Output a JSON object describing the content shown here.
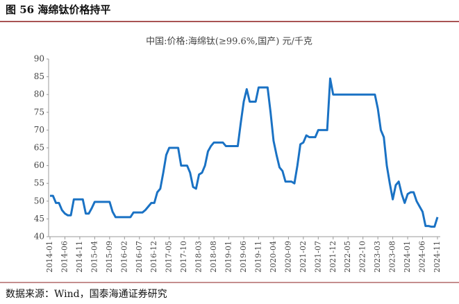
{
  "chart_data": {
    "type": "line",
    "figure_title": "图 56 海绵钛价格持平",
    "title": "中国:价格:海绵钛(≥99.6%,国产) 元/千克",
    "source": "数据来源：Wind，国泰海通证券研究",
    "categories": [
      "2014-01",
      null,
      null,
      null,
      null,
      "2014-06",
      null,
      null,
      null,
      null,
      "2014-11",
      null,
      null,
      null,
      null,
      "2015-04",
      null,
      null,
      null,
      null,
      "2015-09",
      null,
      null,
      null,
      null,
      "2016-02",
      null,
      null,
      null,
      null,
      "2016-07",
      null,
      null,
      null,
      null,
      "2016-12",
      null,
      null,
      null,
      null,
      "2017-05",
      null,
      null,
      null,
      null,
      "2017-10",
      null,
      null,
      null,
      null,
      "2018-03",
      null,
      null,
      null,
      null,
      "2018-08",
      null,
      null,
      null,
      null,
      "2019-01",
      null,
      null,
      null,
      null,
      "2019-06",
      null,
      null,
      null,
      null,
      "2019-11",
      null,
      null,
      null,
      null,
      "2020-04",
      null,
      null,
      null,
      null,
      "2020-09",
      null,
      null,
      null,
      null,
      "2021-02",
      null,
      null,
      null,
      null,
      "2021-07",
      null,
      null,
      null,
      null,
      "2021-12",
      null,
      null,
      null,
      null,
      "2022-05",
      null,
      null,
      null,
      null,
      "2022-10",
      null,
      null,
      null,
      null,
      "2023-03",
      null,
      null,
      null,
      null,
      "2023-08",
      null,
      null,
      null,
      null,
      "2024-01",
      null,
      null,
      null,
      null,
      "2024-06",
      null,
      null,
      null,
      null,
      "2024-11"
    ],
    "series": [
      {
        "color": "#1a72c4",
        "values": [
          51.5,
          51.5,
          49.5,
          49.5,
          47.5,
          46.5,
          46,
          46,
          50.5,
          50.5,
          50.5,
          50.5,
          46.5,
          46.5,
          48,
          49.8,
          49.8,
          49.8,
          49.8,
          49.8,
          49.8,
          47,
          45.5,
          45.5,
          45.5,
          45.5,
          45.5,
          45.5,
          46.8,
          46.8,
          46.8,
          46.8,
          47.5,
          48.5,
          49.5,
          49.5,
          52.5,
          53.5,
          58,
          63,
          65,
          65,
          65,
          65,
          60,
          60,
          60,
          58,
          54,
          53.5,
          57.5,
          58,
          60,
          64,
          65.5,
          66.5,
          66.5,
          66.5,
          66.5,
          65.5,
          65.5,
          65.5,
          65.5,
          65.5,
          72,
          78,
          81.5,
          78,
          78,
          78,
          82,
          82,
          82,
          82,
          75,
          67,
          63,
          59.5,
          58.5,
          55.5,
          55.5,
          55.5,
          55,
          60,
          66,
          66.5,
          68.5,
          68,
          68,
          68,
          70,
          70,
          70,
          70,
          84.5,
          80,
          80,
          80,
          80,
          80,
          80,
          80,
          80,
          80,
          80,
          80,
          80,
          80,
          80,
          80,
          76,
          70,
          68,
          60,
          55,
          50.5,
          54.5,
          55.5,
          52,
          49.5,
          52,
          52.5,
          52.5,
          50,
          48.5,
          47,
          43,
          43,
          42.8,
          42.8,
          45.5
        ]
      }
    ],
    "ylim": [
      40,
      90
    ],
    "yticks": [
      40,
      45,
      50,
      55,
      60,
      65,
      70,
      75,
      80,
      85,
      90
    ],
    "grid": false
  }
}
